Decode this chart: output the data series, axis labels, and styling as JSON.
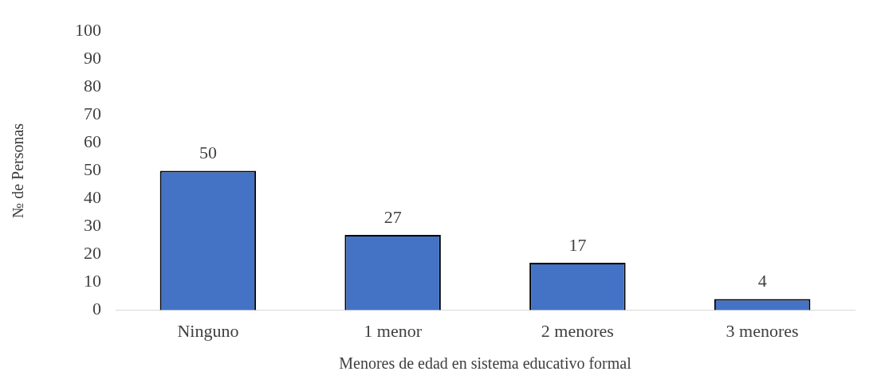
{
  "chart_data": {
    "type": "bar",
    "xlabel": "Menores de edad en sistema educativo formal",
    "ylabel": "№ de Personas",
    "categories": [
      "Ninguno",
      "1 menor",
      "2 menores",
      "3 menores"
    ],
    "values": [
      50,
      27,
      17,
      4
    ],
    "color": "#4472c4",
    "ylim": [
      0,
      100
    ],
    "yticks": [
      0,
      10,
      20,
      30,
      40,
      50,
      60,
      70,
      80,
      90,
      100
    ],
    "grid": false,
    "legend": false,
    "data_labels": true
  }
}
